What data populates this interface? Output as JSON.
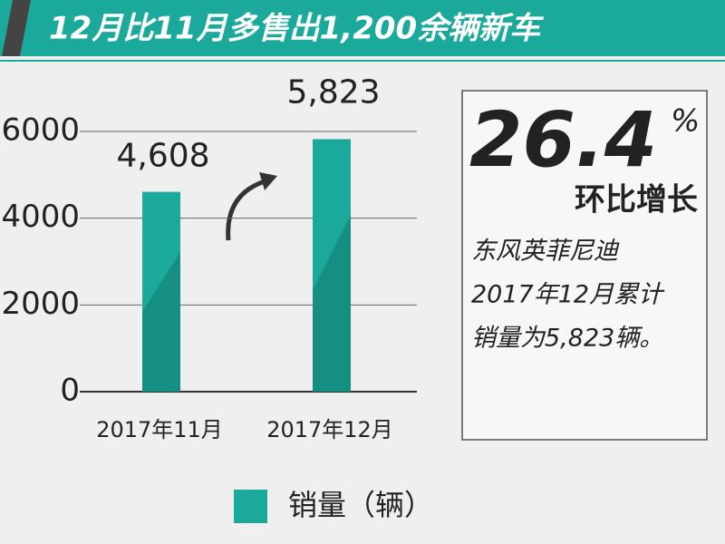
{
  "chart_data": {
    "type": "bar",
    "title": "12月比11月多售出1,200余辆新车",
    "categories": [
      "2017年11月",
      "2017年12月"
    ],
    "series": [
      {
        "name": "销量（辆）",
        "color": "#1aa99a",
        "values": [
          4608,
          5823
        ],
        "value_labels": [
          "4,608",
          "5,823"
        ]
      }
    ],
    "ylim": [
      0,
      6000
    ],
    "yticks": [
      0,
      2000,
      4000,
      6000
    ],
    "grid": true,
    "annotation": {
      "big": "26.4",
      "unit": "%",
      "caption": "环比增长",
      "lines": [
        "东风英菲尼迪",
        "2017年12月累计",
        "销量为5,823辆。"
      ]
    }
  }
}
